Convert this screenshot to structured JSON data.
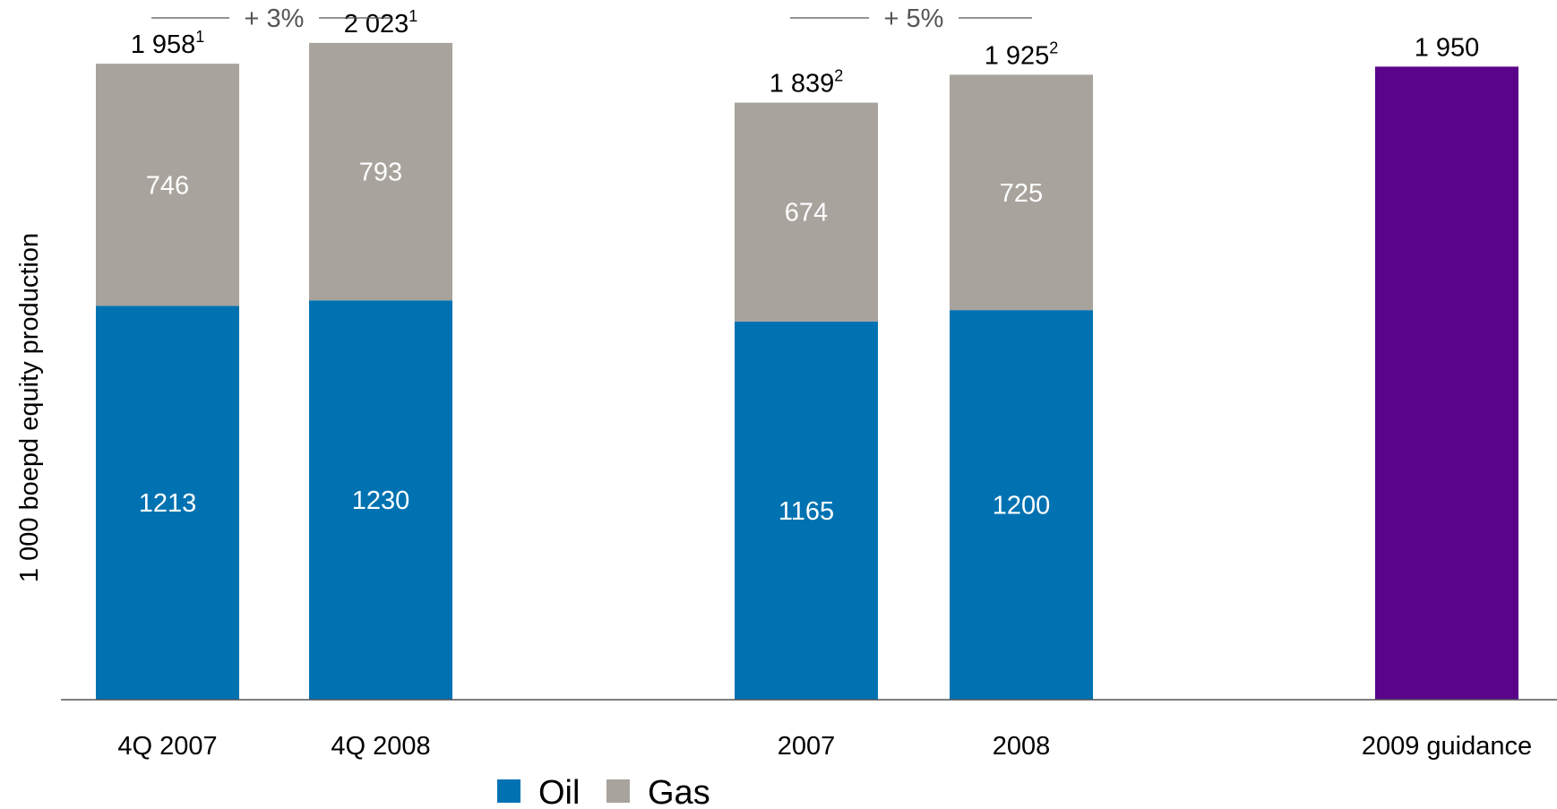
{
  "chart_data": {
    "type": "bar",
    "stacked": true,
    "ylabel": "1 000 boepd equity production",
    "categories": [
      "4Q 2007",
      "4Q 2008",
      "2007",
      "2008",
      "2009 guidance"
    ],
    "series": [
      {
        "name": "Oil",
        "color": "#0072b2",
        "values": [
          1213,
          1230,
          1165,
          1200,
          null
        ]
      },
      {
        "name": "Gas",
        "color": "#a8a39c",
        "values": [
          746,
          793,
          674,
          725,
          null
        ]
      },
      {
        "name": "",
        "color": "#5a048a",
        "values": [
          null,
          null,
          null,
          null,
          1950
        ]
      }
    ],
    "totals": [
      {
        "value": "1 958",
        "sup": "1"
      },
      {
        "value": "2 023",
        "sup": "1"
      },
      {
        "value": "1 839",
        "sup": "2"
      },
      {
        "value": "1 925",
        "sup": "2"
      },
      {
        "value": "1 950",
        "sup": ""
      }
    ],
    "growth_annotations": [
      {
        "label": "+ 3%",
        "between": [
          "4Q 2007",
          "4Q 2008"
        ]
      },
      {
        "label": "+ 5%",
        "between": [
          "2007",
          "2008"
        ]
      }
    ],
    "ylim": [
      0,
      2100
    ],
    "grid": false,
    "legend": {
      "position": "bottom-center",
      "entries": [
        "Oil",
        "Gas"
      ]
    }
  }
}
